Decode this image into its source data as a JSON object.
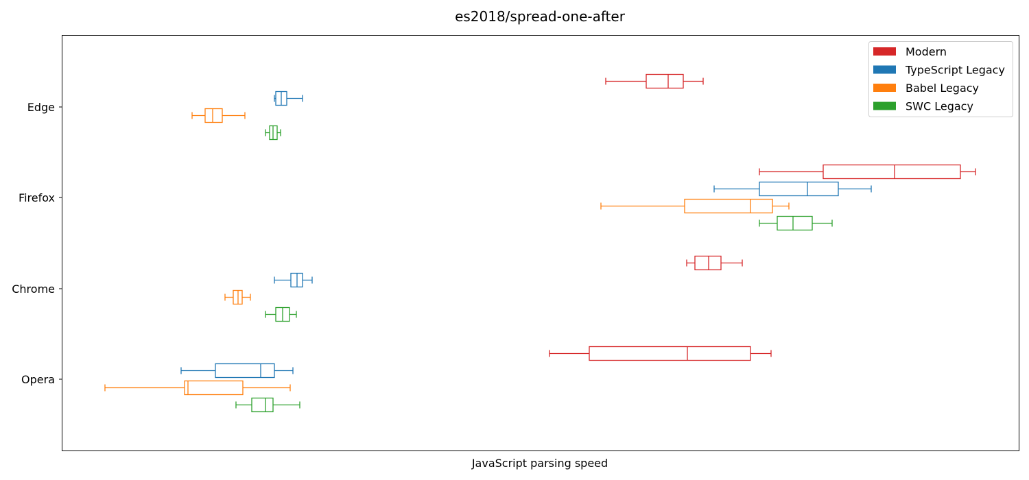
{
  "chart_data": {
    "type": "boxplot",
    "orientation": "horizontal",
    "title": "es2018/spread-one-after",
    "xlabel": "JavaScript parsing speed",
    "ylabel": "",
    "x_ticks": "hidden",
    "grid": false,
    "legend_position": "top-right",
    "categories": [
      "Edge",
      "Firefox",
      "Chrome",
      "Opera"
    ],
    "series": [
      {
        "name": "Modern",
        "color": "#d62728",
        "boxes": [
          {
            "category": "Edge",
            "min": 883,
            "q1": 942,
            "median": 974,
            "q3": 996,
            "max": 1025
          },
          {
            "category": "Firefox",
            "min": 1107,
            "q1": 1200,
            "median": 1304,
            "q3": 1400,
            "max": 1422
          },
          {
            "category": "Chrome",
            "min": 1001,
            "q1": 1013,
            "median": 1033,
            "q3": 1051,
            "max": 1082
          },
          {
            "category": "Opera",
            "min": 801,
            "q1": 859,
            "median": 1002,
            "q3": 1094,
            "max": 1124
          }
        ]
      },
      {
        "name": "TypeScript Legacy",
        "color": "#1f77b4",
        "boxes": [
          {
            "category": "Edge",
            "min": 400,
            "q1": 402,
            "median": 410,
            "q3": 418,
            "max": 441
          },
          {
            "category": "Firefox",
            "min": 1041,
            "q1": 1107,
            "median": 1177,
            "q3": 1222,
            "max": 1270
          },
          {
            "category": "Chrome",
            "min": 400,
            "q1": 424,
            "median": 433,
            "q3": 441,
            "max": 455
          },
          {
            "category": "Opera",
            "min": 264,
            "q1": 314,
            "median": 380,
            "q3": 400,
            "max": 427
          }
        ]
      },
      {
        "name": "Babel Legacy",
        "color": "#ff7f0e",
        "boxes": [
          {
            "category": "Edge",
            "min": 280,
            "q1": 299,
            "median": 310,
            "q3": 324,
            "max": 357
          },
          {
            "category": "Firefox",
            "min": 876,
            "q1": 998,
            "median": 1094,
            "q3": 1126,
            "max": 1150
          },
          {
            "category": "Chrome",
            "min": 328,
            "q1": 340,
            "median": 347,
            "q3": 353,
            "max": 365
          },
          {
            "category": "Opera",
            "min": 153,
            "q1": 269,
            "median": 274,
            "q3": 354,
            "max": 423
          }
        ]
      },
      {
        "name": "SWC Legacy",
        "color": "#2ca02c",
        "boxes": [
          {
            "category": "Edge",
            "min": 387,
            "q1": 393,
            "median": 398,
            "q3": 404,
            "max": 409
          },
          {
            "category": "Firefox",
            "min": 1107,
            "q1": 1133,
            "median": 1156,
            "q3": 1184,
            "max": 1213
          },
          {
            "category": "Chrome",
            "min": 387,
            "q1": 402,
            "median": 412,
            "q3": 422,
            "max": 432
          },
          {
            "category": "Opera",
            "min": 344,
            "q1": 367,
            "median": 387,
            "q3": 398,
            "max": 437
          }
        ]
      }
    ]
  }
}
